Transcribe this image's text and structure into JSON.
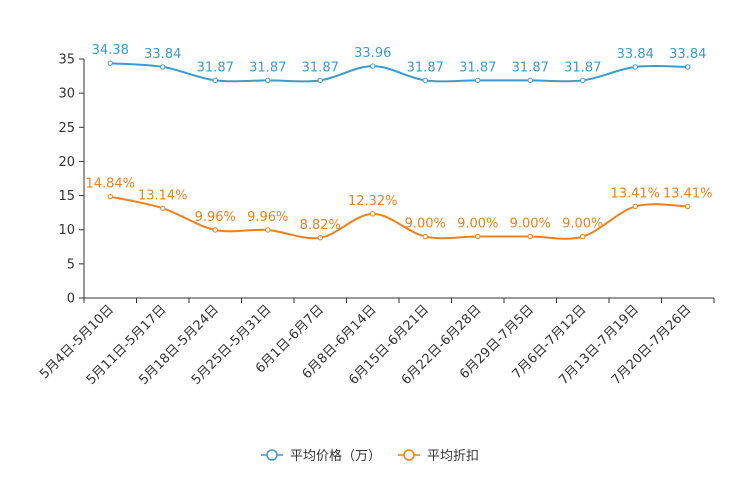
{
  "chart_data": {
    "type": "line",
    "categories": [
      "5月4日-5月10日",
      "5月11日-5月17日",
      "5月18日-5月24日",
      "5月25日-5月31日",
      "6月1日-6月7日",
      "6月8日-6月14日",
      "6月15日-6月21日",
      "6月22日-6月28日",
      "6月29日-7月5日",
      "7月6日-7月12日",
      "7月13日-7月19日",
      "7月20日-7月26日"
    ],
    "ylim": [
      0,
      35
    ],
    "yticks": [
      "0",
      "5",
      "10",
      "15",
      "20",
      "25",
      "30",
      "35"
    ],
    "series": [
      {
        "name": "平均价格（万）",
        "color": "#3a9bd1",
        "values": [
          34.38,
          33.84,
          31.87,
          31.87,
          31.87,
          33.96,
          31.87,
          31.87,
          31.87,
          31.87,
          33.84,
          33.84
        ],
        "labels": [
          "34.38",
          "33.84",
          "31.87",
          "31.87",
          "31.87",
          "33.96",
          "31.87",
          "31.87",
          "31.87",
          "31.87",
          "33.84",
          "33.84"
        ]
      },
      {
        "name": "平均折扣",
        "color": "#f08019",
        "values": [
          14.84,
          13.14,
          9.96,
          9.96,
          8.82,
          12.32,
          9.0,
          9.0,
          9.0,
          9.0,
          13.41,
          13.41
        ],
        "labels": [
          "14.84%",
          "13.14%",
          "9.96%",
          "9.96%",
          "8.82%",
          "12.32%",
          "9.00%",
          "9.00%",
          "9.00%",
          "9.00%",
          "13.41%",
          "13.41%"
        ]
      }
    ],
    "legend_position": "bottom-center",
    "grid": false
  }
}
